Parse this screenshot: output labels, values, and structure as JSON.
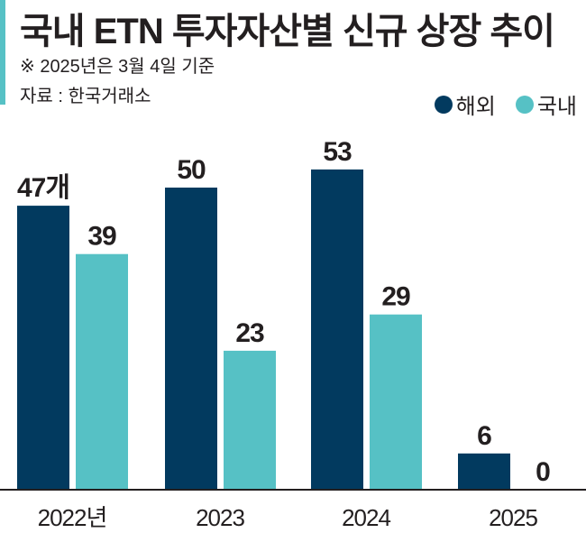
{
  "title": "국내 ETN 투자자산별 신규 상장 추이",
  "note": "※ 2025년은 3월 4일 기준",
  "source": "자료 : 한국거래소",
  "colors": {
    "overseas": "#023a5f",
    "domestic": "#56c1c5",
    "accent": "#56c1c5"
  },
  "chart_data": {
    "type": "bar",
    "title": "국내 ETN 투자자산별 신규 상장 추이",
    "categories": [
      "2022년",
      "2023",
      "2024",
      "2025"
    ],
    "series": [
      {
        "name": "해외",
        "values": [
          47,
          50,
          53,
          6
        ],
        "labels": [
          "47개",
          "50",
          "53",
          "6"
        ]
      },
      {
        "name": "국내",
        "values": [
          39,
          23,
          29,
          0
        ],
        "labels": [
          "39",
          "23",
          "29",
          "0"
        ]
      }
    ],
    "ylim": [
      0,
      60
    ],
    "legend": "top-right",
    "grid": false
  }
}
